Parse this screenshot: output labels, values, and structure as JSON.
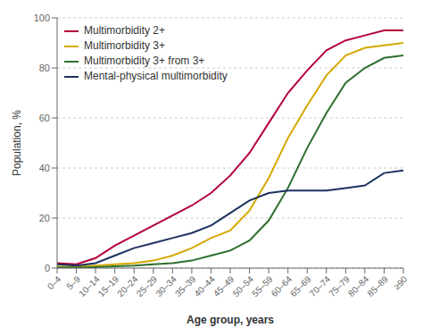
{
  "chart_data": {
    "type": "line",
    "xlabel": "Age group, years",
    "ylabel": "Population, %",
    "categories": [
      "0–4",
      "5–9",
      "10–14",
      "15–19",
      "20–24",
      "25–29",
      "30–34",
      "35–39",
      "40–44",
      "45–49",
      "50–54",
      "55–59",
      "60–64",
      "65–69",
      "70–74",
      "75–79",
      "80–84",
      "85–89",
      "≥90"
    ],
    "series": [
      {
        "name": "Multimorbidity 2+",
        "color": "#b5003a",
        "values": [
          2,
          1.5,
          4,
          9,
          13,
          17,
          21,
          25,
          30,
          37,
          46,
          58,
          70,
          79,
          87,
          91,
          93,
          95,
          95
        ]
      },
      {
        "name": "Multimorbidity 3+",
        "color": "#d4a800",
        "values": [
          0.5,
          0.5,
          1,
          1.5,
          2,
          3,
          5,
          8,
          12,
          15,
          23,
          36,
          52,
          65,
          77,
          85,
          88,
          89,
          90
        ]
      },
      {
        "name": "Multimorbidity 3+ from 3+",
        "color": "#2d6e2d",
        "values": [
          0.3,
          0.2,
          0.4,
          0.7,
          1,
          1.5,
          2,
          3,
          5,
          7,
          11,
          19,
          32,
          48,
          62,
          74,
          80,
          84,
          85
        ]
      },
      {
        "name": "Mental-physical multimorbidity",
        "color": "#1c3260",
        "values": [
          1.5,
          1,
          2,
          5,
          8,
          10,
          12,
          14,
          17,
          22,
          27,
          30,
          31,
          31,
          31,
          32,
          33,
          38,
          39
        ]
      }
    ],
    "ylim": [
      0,
      100
    ],
    "yticks": [
      0,
      20,
      40,
      60,
      80,
      100
    ],
    "grid": true,
    "legend": "upper left"
  }
}
